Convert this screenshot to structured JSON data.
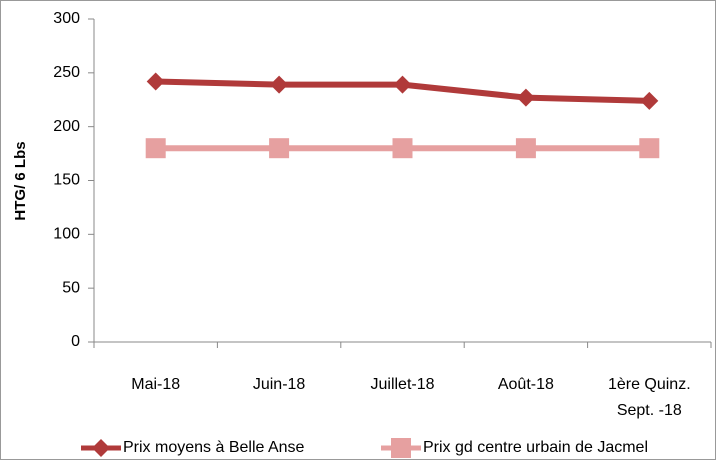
{
  "chart_data": {
    "type": "line",
    "y_label": "HTG/ 6 Lbs",
    "categories": [
      "Mai-18",
      "Juin-18",
      "Juillet-18",
      "Août-18",
      "1ère Quinz. Sept. -18"
    ],
    "series": [
      {
        "name": "Prix moyens à Belle Anse",
        "color": "#b03a3a",
        "marker": "diamond",
        "values": [
          242,
          239,
          239,
          227,
          224
        ]
      },
      {
        "name": "Prix gd centre urbain de Jacmel",
        "color": "#e6a0a0",
        "marker": "square",
        "values": [
          180,
          180,
          180,
          180,
          180
        ]
      }
    ],
    "ylim": [
      0,
      300
    ],
    "yticks": [
      0,
      50,
      100,
      150,
      200,
      250,
      300
    ],
    "grid": false,
    "legend": "bottom"
  }
}
